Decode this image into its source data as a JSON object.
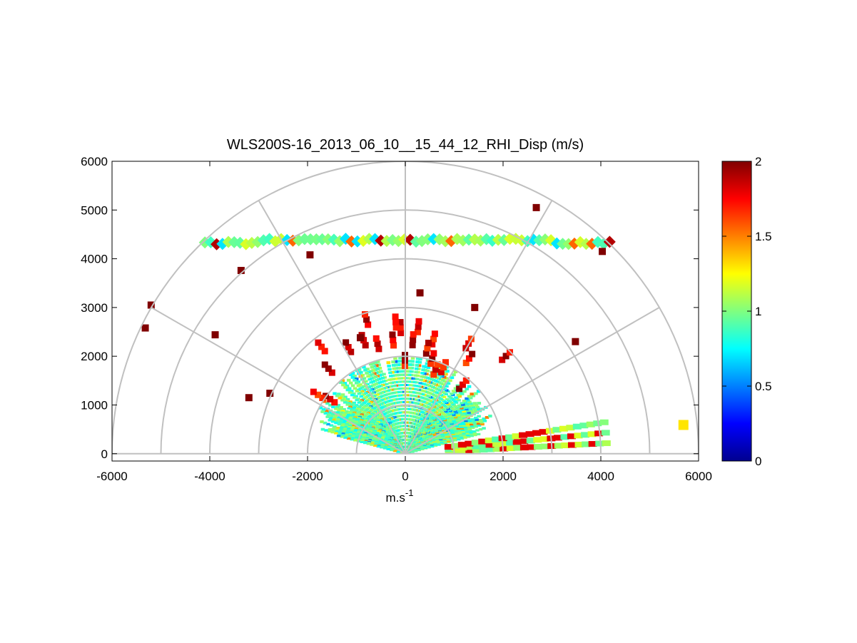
{
  "chart_data": {
    "type": "heatmap",
    "subtype": "polar-sector (RHI scan)",
    "title": "WLS200S-16_2013_06_10__15_44_12_RHI_Disp (m/s)",
    "xlabel": "m.s",
    "xlabel_superscript": "-1",
    "ylabel": "",
    "xlim": [
      -6000,
      6000
    ],
    "ylim": [
      -150,
      6000
    ],
    "xticks": [
      -6000,
      -4000,
      -2000,
      0,
      2000,
      4000,
      6000
    ],
    "xtick_labels": [
      "-6000",
      "-4000",
      "-2000",
      "0",
      "2000",
      "4000",
      "6000"
    ],
    "yticks": [
      0,
      1000,
      2000,
      3000,
      4000,
      5000,
      6000
    ],
    "ytick_labels": [
      "0",
      "1000",
      "2000",
      "3000",
      "4000",
      "5000",
      "6000"
    ],
    "polar_grid": {
      "rings": [
        1000,
        2000,
        3000,
        4000,
        5000,
        6000
      ],
      "spokes_deg": [
        0,
        30,
        60,
        90,
        120,
        150,
        180
      ]
    },
    "colorbar": {
      "colormap": "jet",
      "min": 0,
      "max": 2,
      "ticks": [
        0,
        0.5,
        1,
        1.5,
        2
      ],
      "tick_labels": [
        "0",
        "0.5",
        "1",
        "1.5",
        "2"
      ]
    },
    "features": [
      {
        "name": "dense near-field region",
        "r_range": [
          0,
          2000
        ],
        "angle_range_deg": [
          15,
          165
        ],
        "value": 0.9
      },
      {
        "name": "cloud layer arc",
        "height": 4380,
        "x_range": [
          -4100,
          4200
        ],
        "value": 1.0
      },
      {
        "name": "low-elevation rays",
        "angle_range_deg": [
          3,
          10
        ],
        "r_max": 4200,
        "value": 1.0
      }
    ]
  },
  "colors": {
    "grid": "#c0c0c0",
    "axis": "#000000",
    "background": "#ffffff"
  }
}
